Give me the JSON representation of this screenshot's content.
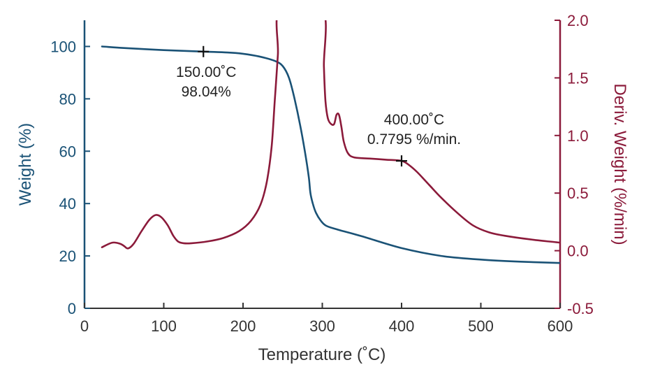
{
  "chart_data": {
    "type": "line",
    "x_axis": {
      "label": "Temperature (˚C)",
      "range": [
        0,
        600
      ],
      "ticks": [
        0,
        100,
        200,
        300,
        400,
        500,
        600
      ],
      "tick_labels": [
        "0",
        "100",
        "200",
        "300",
        "400",
        "500",
        "600"
      ]
    },
    "y_axis_left": {
      "label": "Weight (%)",
      "range": [
        0,
        110
      ],
      "ticks": [
        0,
        20,
        40,
        60,
        80,
        100
      ],
      "tick_labels": [
        "0",
        "20",
        "40",
        "60",
        "80",
        "100"
      ],
      "color": "#1a5276"
    },
    "y_axis_right": {
      "label": "Deriv. Weight (%/min)",
      "range": [
        -0.5,
        2.0
      ],
      "ticks": [
        -0.5,
        0.0,
        0.5,
        1.0,
        1.5,
        2.0
      ],
      "tick_labels": [
        "-0.5",
        "0.0",
        "0.5",
        "1.0",
        "1.5",
        "2.0"
      ],
      "color": "#8b1a3a"
    },
    "grid": false,
    "series": [
      {
        "axis": "left",
        "color": "#1a5276",
        "points": [
          [
            22,
            100
          ],
          [
            50,
            99.4
          ],
          [
            100,
            98.6
          ],
          [
            150,
            98.04
          ],
          [
            180,
            97.7
          ],
          [
            200,
            97.2
          ],
          [
            220,
            96.2
          ],
          [
            240,
            94.5
          ],
          [
            250,
            92.5
          ],
          [
            258,
            88
          ],
          [
            265,
            80
          ],
          [
            272,
            70
          ],
          [
            278,
            60
          ],
          [
            283,
            50
          ],
          [
            285,
            44
          ],
          [
            288,
            40
          ],
          [
            292,
            36.5
          ],
          [
            298,
            33.5
          ],
          [
            305,
            31.5
          ],
          [
            320,
            30
          ],
          [
            350,
            27.5
          ],
          [
            400,
            23
          ],
          [
            450,
            20
          ],
          [
            500,
            18.6
          ],
          [
            550,
            17.8
          ],
          [
            600,
            17.3
          ]
        ]
      },
      {
        "axis": "right",
        "color": "#8b1a3a",
        "points": [
          [
            22,
            0.03
          ],
          [
            35,
            0.07
          ],
          [
            45,
            0.06
          ],
          [
            50,
            0.04
          ],
          [
            55,
            0.02
          ],
          [
            62,
            0.06
          ],
          [
            72,
            0.17
          ],
          [
            82,
            0.27
          ],
          [
            90,
            0.31
          ],
          [
            97,
            0.29
          ],
          [
            105,
            0.22
          ],
          [
            112,
            0.13
          ],
          [
            118,
            0.08
          ],
          [
            125,
            0.065
          ],
          [
            135,
            0.065
          ],
          [
            155,
            0.08
          ],
          [
            175,
            0.11
          ],
          [
            195,
            0.17
          ],
          [
            210,
            0.26
          ],
          [
            222,
            0.4
          ],
          [
            230,
            0.6
          ],
          [
            236,
            0.9
          ],
          [
            240,
            1.3
          ],
          [
            244,
            1.7
          ],
          [
            247,
            2.1
          ],
          [
            300,
            2.1
          ],
          [
            302,
            1.6
          ],
          [
            304,
            1.3
          ],
          [
            307,
            1.15
          ],
          [
            311,
            1.1
          ],
          [
            315,
            1.1
          ],
          [
            318,
            1.18
          ],
          [
            321,
            1.18
          ],
          [
            324,
            1.08
          ],
          [
            327,
            0.95
          ],
          [
            332,
            0.85
          ],
          [
            340,
            0.81
          ],
          [
            360,
            0.8
          ],
          [
            380,
            0.79
          ],
          [
            400,
            0.78
          ],
          [
            410,
            0.74
          ],
          [
            420,
            0.68
          ],
          [
            435,
            0.57
          ],
          [
            450,
            0.46
          ],
          [
            470,
            0.33
          ],
          [
            490,
            0.22
          ],
          [
            510,
            0.16
          ],
          [
            530,
            0.13
          ],
          [
            560,
            0.1
          ],
          [
            600,
            0.07
          ]
        ]
      }
    ],
    "annotations": [
      {
        "series": 0,
        "x": 150,
        "y": 98.04,
        "line1": "150.00˚C",
        "line2": "98.04%"
      },
      {
        "series": 1,
        "x": 400,
        "y": 0.7795,
        "line1": "400.00˚C",
        "line2": "0.7795 %/min."
      }
    ]
  }
}
